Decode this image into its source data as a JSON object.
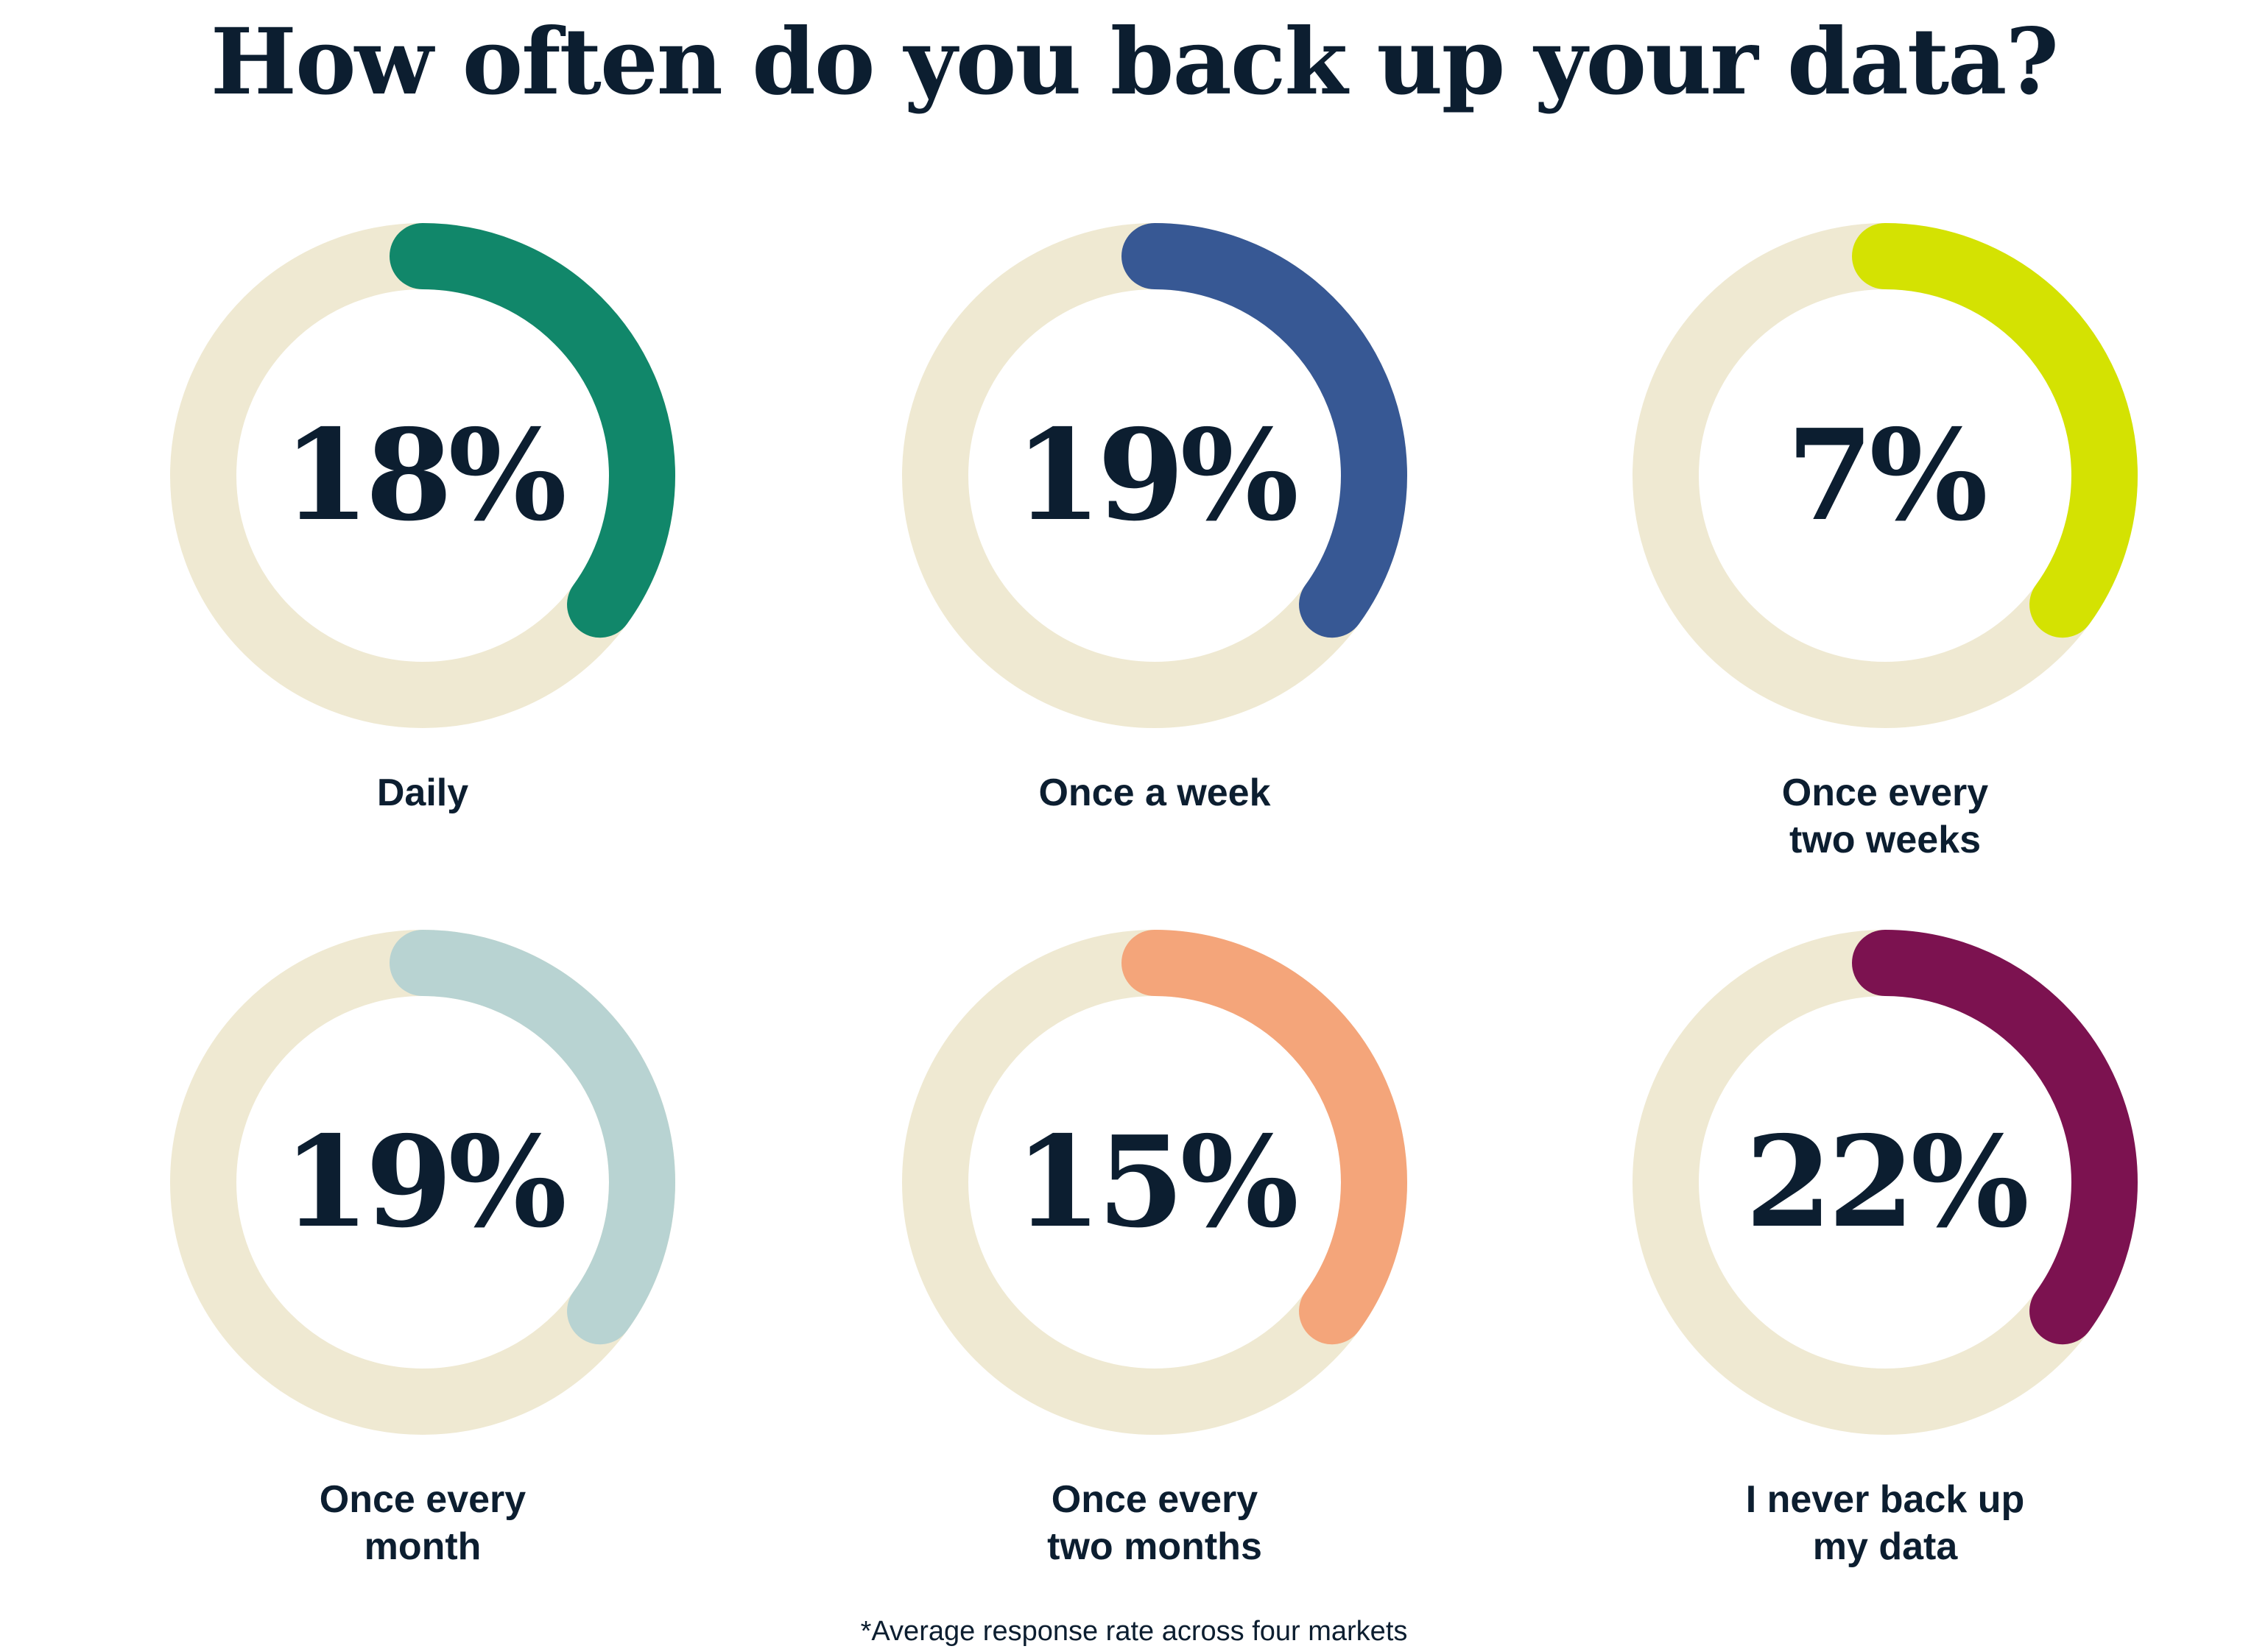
{
  "title": "How often do you back up your data?",
  "footnote": "*Average response rate across four markets",
  "colors": {
    "track": "#efe9d2",
    "text": "#0c1e30"
  },
  "chart_data": {
    "type": "donut",
    "title": "How often do you back up your data?",
    "unit": "%",
    "items": [
      {
        "label": "Daily",
        "value": 18,
        "display": "18%",
        "color": "#11876a"
      },
      {
        "label": "Once a week",
        "value": 19,
        "display": "19%",
        "color": "#375894"
      },
      {
        "label": "Once every\ntwo weeks",
        "value": 7,
        "display": "7%",
        "color": "#d4e202"
      },
      {
        "label": "Once every\nmonth",
        "value": 19,
        "display": "19%",
        "color": "#b8d3d2"
      },
      {
        "label": "Once every\ntwo months",
        "value": 15,
        "display": "15%",
        "color": "#f4a57a"
      },
      {
        "label": "I never back up\nmy data",
        "value": 22,
        "display": "22%",
        "color": "#7c1250"
      }
    ]
  }
}
